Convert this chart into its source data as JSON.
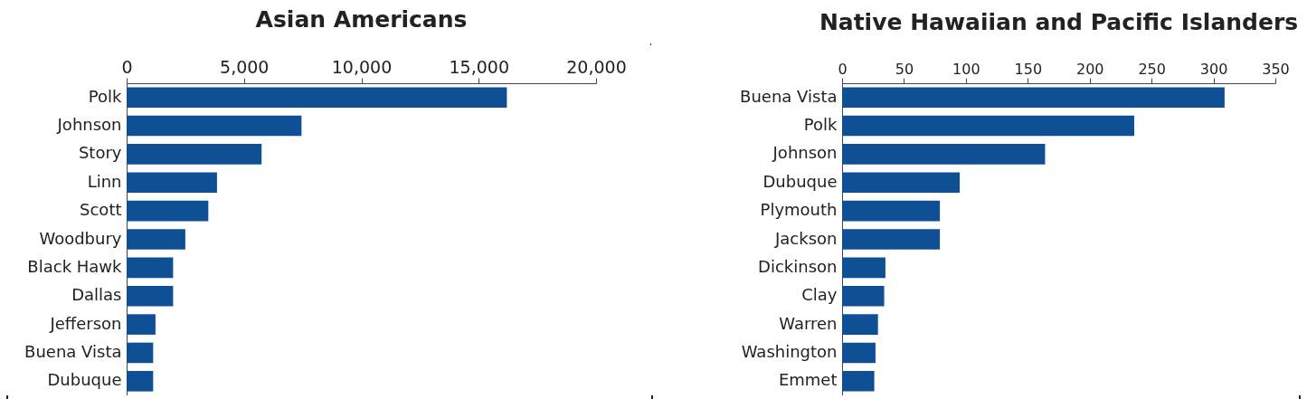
{
  "chart_data": [
    {
      "type": "bar",
      "orientation": "horizontal",
      "title": "Asian Americans",
      "categories": [
        "Polk",
        "Johnson",
        "Story",
        "Linn",
        "Scott",
        "Woodbury",
        "Black Hawk",
        "Dallas",
        "Jefferson",
        "Buena Vista",
        "Dubuque"
      ],
      "values": [
        16200,
        7450,
        5750,
        3850,
        3480,
        2500,
        1980,
        1980,
        1230,
        1130,
        1130
      ],
      "color": "#0f4f96",
      "xlim": [
        0,
        20000
      ],
      "xticks": [
        {
          "value": 0,
          "label": "0"
        },
        {
          "value": 5000,
          "label": "5,000"
        },
        {
          "value": 10000,
          "label": "10,000"
        },
        {
          "value": 15000,
          "label": "15,000"
        },
        {
          "value": 20000,
          "label": "20,000"
        }
      ],
      "grid": false
    },
    {
      "type": "bar",
      "orientation": "horizontal",
      "title": "Native Hawaiian and Pacific Islanders",
      "categories": [
        "Buena Vista",
        "Polk",
        "Johnson",
        "Dubuque",
        "Plymouth",
        "Jackson",
        "Dickinson",
        "Clay",
        "Warren",
        "Washington",
        "Emmet"
      ],
      "values": [
        309,
        236,
        164,
        95,
        79,
        79,
        35,
        34,
        29,
        27,
        26
      ],
      "color": "#0f4f96",
      "xlim": [
        0,
        350
      ],
      "xticks": [
        0,
        50,
        100,
        150,
        200,
        250,
        300,
        350
      ],
      "grid": false
    }
  ]
}
